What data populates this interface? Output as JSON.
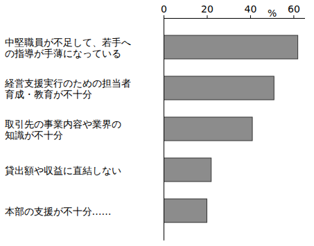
{
  "chart_data": {
    "type": "bar",
    "orientation": "horizontal",
    "categories": [
      "中堅職員が不足して、若手へ\nの指導が手薄になっている",
      "経営支援実行のための担当者\n育成・教育が不十分",
      "取引先の事業内容や業界の\n知識が不十分",
      "貸出額や収益に直結しない",
      "本部の支援が不十分……"
    ],
    "values": [
      62,
      51,
      41,
      22,
      20
    ],
    "color": "#8c8c8c",
    "xlabel": "%",
    "xlim": [
      0,
      65
    ],
    "xticks": [
      0,
      20,
      40,
      60
    ],
    "grid": false
  }
}
